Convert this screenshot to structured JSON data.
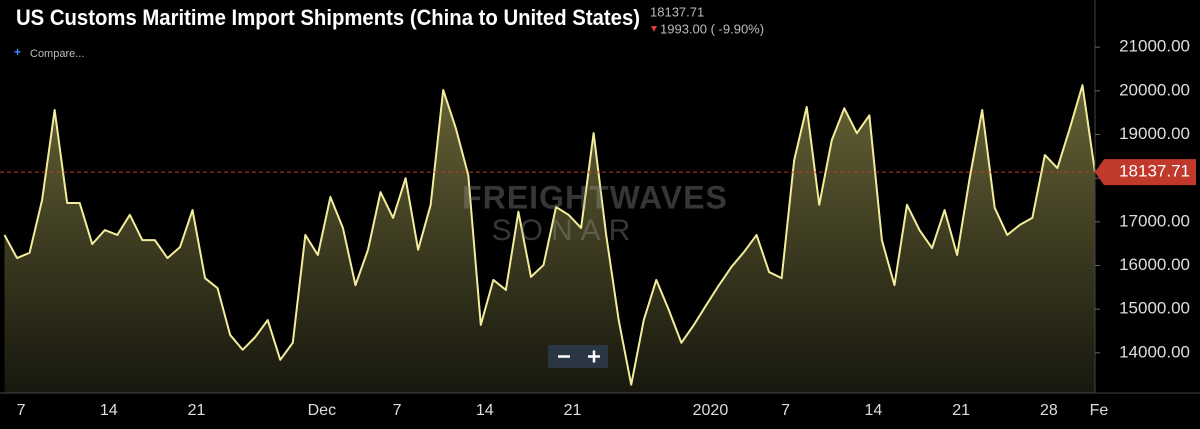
{
  "chart_data": {
    "type": "line",
    "title": "US Customs Maritime Import Shipments (China to United States)",
    "last_value_label": "18137.71",
    "change_label": "1993.00 ( -9.90%)",
    "compare_label": "Compare...",
    "watermark": [
      "FREIGHTWAVES",
      "SONAR"
    ],
    "categories": [
      null,
      "7",
      null,
      null,
      null,
      null,
      null,
      null,
      "14",
      null,
      null,
      null,
      null,
      null,
      null,
      "21",
      null,
      null,
      null,
      null,
      null,
      null,
      null,
      null,
      null,
      "Dec",
      null,
      null,
      null,
      null,
      null,
      "7",
      null,
      null,
      null,
      null,
      null,
      null,
      "14",
      null,
      null,
      null,
      null,
      null,
      null,
      "21",
      null,
      null,
      null,
      null,
      null,
      null,
      null,
      null,
      null,
      null,
      "2020",
      null,
      null,
      null,
      null,
      null,
      "7",
      null,
      null,
      null,
      null,
      null,
      null,
      "14",
      null,
      null,
      null,
      null,
      null,
      null,
      "21",
      null,
      null,
      null,
      null,
      null,
      null,
      "28",
      null,
      null,
      null,
      "Fe"
    ],
    "values": [
      16700,
      16170,
      16290,
      17500,
      19560,
      17430,
      17430,
      16490,
      16810,
      16700,
      17160,
      16580,
      16580,
      16170,
      16420,
      17270,
      15710,
      15480,
      14410,
      14070,
      14360,
      14750,
      13840,
      14230,
      16700,
      16240,
      17570,
      16860,
      15550,
      16360,
      17680,
      17090,
      18000,
      16360,
      17390,
      20020,
      19150,
      18070,
      14640,
      15670,
      15440,
      17230,
      15740,
      16010,
      17340,
      17160,
      16860,
      19030,
      16700,
      14750,
      13270,
      14750,
      15670,
      14980,
      14230,
      14640,
      15100,
      15550,
      15970,
      16310,
      16700,
      15850,
      15710,
      18410,
      19630,
      17390,
      18870,
      19600,
      19030,
      19440,
      16580,
      15550,
      17390,
      16810,
      16400,
      17270,
      16240,
      18000,
      19560,
      17320,
      16700,
      16930,
      17090,
      18530,
      18230,
      19150,
      20130,
      18137.71
    ],
    "color": "#f3ec9a",
    "area": true,
    "reference_line": true,
    "reference_color": "#c0392b",
    "ylim": [
      13080,
      22080
    ],
    "yticks": [
      {
        "value": 14000,
        "label": "14000.00"
      },
      {
        "value": 15000,
        "label": "15000.00"
      },
      {
        "value": 16000,
        "label": "16000.00"
      },
      {
        "value": 17000,
        "label": "17000.00"
      },
      {
        "value": 18000,
        "label": "18000.00"
      },
      {
        "value": 19000,
        "label": "19000.00"
      },
      {
        "value": 20000,
        "label": "20000.00"
      },
      {
        "value": 21000,
        "label": "21000.00"
      }
    ],
    "grid": false
  }
}
